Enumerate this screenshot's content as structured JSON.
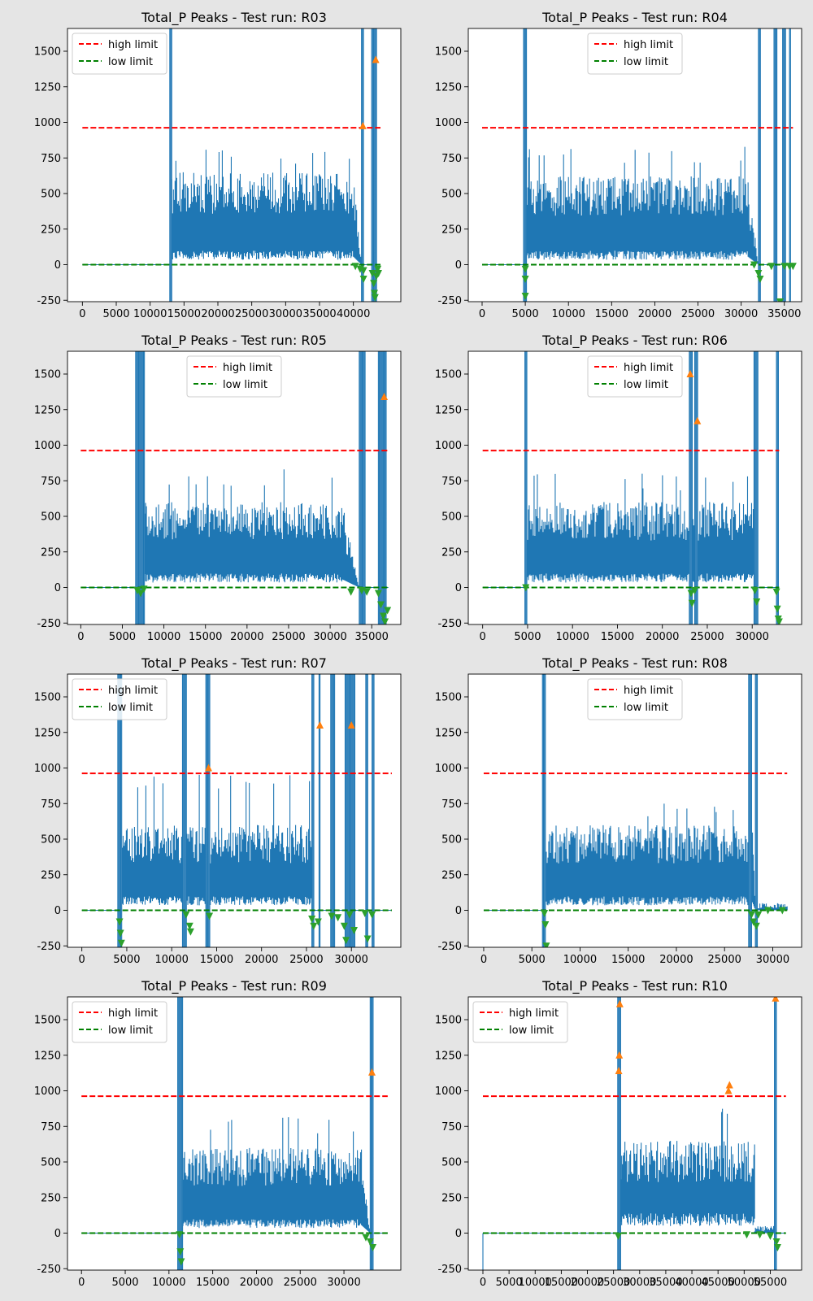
{
  "figure": {
    "background": "#e5e5e5"
  },
  "legend_labels": {
    "high": "high limit",
    "low": "low limit"
  },
  "colors": {
    "signal": "#1f77b4",
    "high_limit": "#ff0000",
    "low_limit": "#008000",
    "peak_up": "#ff7f0e",
    "peak_down": "#2ca02c"
  },
  "chart_data": [
    {
      "type": "line",
      "title": "Total_P Peaks - Test run: R03",
      "legend_pos": "upper-left",
      "xlim": [
        -2200,
        47000
      ],
      "ylim": [
        -260,
        1660
      ],
      "xticks": [
        0,
        5000,
        10000,
        15000,
        20000,
        25000,
        30000,
        35000,
        40000
      ],
      "xtick_labels": [
        "0",
        "5000",
        "10000",
        "15000",
        "20000",
        "25000",
        "30000",
        "35000",
        "40000"
      ],
      "yticks": [
        -250,
        0,
        250,
        500,
        750,
        1000,
        1250,
        1500
      ],
      "ytick_labels": [
        "-250",
        "0",
        "250",
        "500",
        "750",
        "1000",
        "1250",
        "1500"
      ],
      "high_limit": 962,
      "low_limit": 0,
      "x_end": 44000,
      "segments": [
        [
          0,
          12900,
          "flat"
        ],
        [
          12900,
          13200,
          "spike"
        ],
        [
          13200,
          40000,
          "band"
        ],
        [
          40000,
          41200,
          "decay"
        ],
        [
          41200,
          41500,
          "spike"
        ],
        [
          41500,
          42700,
          "flat"
        ],
        [
          42700,
          43500,
          "spike"
        ],
        [
          43500,
          44000,
          "flat"
        ]
      ],
      "band": {
        "low": 70,
        "high": 650,
        "peak": 820
      },
      "peaks_up": [
        [
          41400,
          975
        ],
        [
          43300,
          1440
        ]
      ],
      "peaks_down": [
        [
          40300,
          -10
        ],
        [
          41000,
          -30
        ],
        [
          41500,
          -40
        ],
        [
          41500,
          -100
        ],
        [
          42800,
          -60
        ],
        [
          43000,
          -130
        ],
        [
          43100,
          -200
        ],
        [
          43200,
          -230
        ],
        [
          43400,
          -80
        ],
        [
          43600,
          -30
        ],
        [
          43700,
          -60
        ]
      ]
    },
    {
      "type": "line",
      "title": "Total_P Peaks - Test run: R04",
      "legend_pos": "upper-center",
      "xlim": [
        -1600,
        37000
      ],
      "ylim": [
        -260,
        1660
      ],
      "xticks": [
        0,
        5000,
        10000,
        15000,
        20000,
        25000,
        30000,
        35000
      ],
      "xtick_labels": [
        "0",
        "5000",
        "10000",
        "15000",
        "20000",
        "25000",
        "30000",
        "35000"
      ],
      "yticks": [
        -250,
        0,
        250,
        500,
        750,
        1000,
        1250,
        1500
      ],
      "ytick_labels": [
        "-250",
        "0",
        "250",
        "500",
        "750",
        "1000",
        "1250",
        "1500"
      ],
      "high_limit": 962,
      "low_limit": 0,
      "x_end": 36000,
      "segments": [
        [
          0,
          4800,
          "flat"
        ],
        [
          4800,
          5200,
          "spike"
        ],
        [
          5200,
          30800,
          "band"
        ],
        [
          30800,
          32000,
          "decay"
        ],
        [
          32000,
          32300,
          "spike"
        ],
        [
          32300,
          33800,
          "flat"
        ],
        [
          33800,
          34200,
          "spike"
        ],
        [
          34200,
          34800,
          "flat"
        ],
        [
          34800,
          35200,
          "spike"
        ],
        [
          35200,
          35600,
          "flat"
        ],
        [
          35600,
          35800,
          "spike"
        ],
        [
          35800,
          36000,
          "flat"
        ]
      ],
      "band": {
        "low": 70,
        "high": 620,
        "peak": 840
      },
      "peaks_up": [],
      "peaks_down": [
        [
          5000,
          -30
        ],
        [
          5000,
          -100
        ],
        [
          5000,
          -220
        ],
        [
          31500,
          0
        ],
        [
          32000,
          -60
        ],
        [
          32200,
          -100
        ],
        [
          33500,
          -10
        ],
        [
          34500,
          -260
        ],
        [
          35000,
          -10
        ],
        [
          35600,
          -10
        ],
        [
          36000,
          -10
        ]
      ]
    },
    {
      "type": "line",
      "title": "Total_P Peaks - Test run: R05",
      "legend_pos": "upper-center",
      "xlim": [
        -1600,
        38500
      ],
      "ylim": [
        -260,
        1660
      ],
      "xticks": [
        0,
        5000,
        10000,
        15000,
        20000,
        25000,
        30000,
        35000
      ],
      "xtick_labels": [
        "0",
        "5000",
        "10000",
        "15000",
        "20000",
        "25000",
        "30000",
        "35000"
      ],
      "yticks": [
        -250,
        0,
        250,
        500,
        750,
        1000,
        1250,
        1500
      ],
      "ytick_labels": [
        "-250",
        "0",
        "250",
        "500",
        "750",
        "1000",
        "1250",
        "1500"
      ],
      "high_limit": 962,
      "low_limit": 0,
      "x_end": 37000,
      "segments": [
        [
          0,
          6600,
          "flat"
        ],
        [
          6600,
          7700,
          "spike"
        ],
        [
          7700,
          31500,
          "band"
        ],
        [
          31500,
          33500,
          "decay"
        ],
        [
          33500,
          34300,
          "spike"
        ],
        [
          34300,
          35800,
          "flat"
        ],
        [
          35800,
          36800,
          "spike"
        ],
        [
          36800,
          37000,
          "flat"
        ]
      ],
      "band": {
        "low": 70,
        "high": 600,
        "peak": 840
      },
      "peaks_up": [
        [
          36500,
          1340
        ]
      ],
      "peaks_down": [
        [
          6800,
          -20
        ],
        [
          7200,
          -40
        ],
        [
          7600,
          -10
        ],
        [
          32500,
          -30
        ],
        [
          33800,
          -20
        ],
        [
          34400,
          -30
        ],
        [
          35800,
          -40
        ],
        [
          36100,
          -120
        ],
        [
          36400,
          -200
        ],
        [
          36600,
          -240
        ],
        [
          36900,
          -160
        ]
      ]
    },
    {
      "type": "line",
      "title": "Total_P Peaks - Test run: R06",
      "legend_pos": "upper-center",
      "xlim": [
        -1600,
        35500
      ],
      "ylim": [
        -260,
        1660
      ],
      "xticks": [
        0,
        5000,
        10000,
        15000,
        20000,
        25000,
        30000
      ],
      "xtick_labels": [
        "0",
        "5000",
        "10000",
        "15000",
        "20000",
        "25000",
        "30000"
      ],
      "yticks": [
        -250,
        0,
        250,
        500,
        750,
        1000,
        1250,
        1500
      ],
      "ytick_labels": [
        "-250",
        "0",
        "250",
        "500",
        "750",
        "1000",
        "1250",
        "1500"
      ],
      "high_limit": 962,
      "low_limit": 0,
      "x_end": 33000,
      "segments": [
        [
          0,
          4700,
          "flat"
        ],
        [
          4700,
          5000,
          "spike"
        ],
        [
          5000,
          23000,
          "band"
        ],
        [
          23000,
          23400,
          "spike"
        ],
        [
          23400,
          23600,
          "band"
        ],
        [
          23600,
          24000,
          "spike"
        ],
        [
          24000,
          30200,
          "band"
        ],
        [
          30200,
          30700,
          "spike"
        ],
        [
          30700,
          32700,
          "flat"
        ],
        [
          32700,
          33000,
          "spike"
        ]
      ],
      "band": {
        "low": 70,
        "high": 600,
        "peak": 800
      },
      "peaks_up": [
        [
          23100,
          1500
        ],
        [
          23900,
          1170
        ]
      ],
      "peaks_down": [
        [
          4800,
          0
        ],
        [
          23200,
          -40
        ],
        [
          23300,
          -110
        ],
        [
          23600,
          -20
        ],
        [
          30300,
          -20
        ],
        [
          30500,
          -100
        ],
        [
          32700,
          -30
        ],
        [
          32800,
          -150
        ],
        [
          32900,
          -220
        ],
        [
          33000,
          -240
        ]
      ]
    },
    {
      "type": "line",
      "title": "Total_P Peaks - Test run: R07",
      "legend_pos": "upper-left",
      "xlim": [
        -1600,
        35500
      ],
      "ylim": [
        -260,
        1660
      ],
      "xticks": [
        0,
        5000,
        10000,
        15000,
        20000,
        25000,
        30000
      ],
      "xtick_labels": [
        "0",
        "5000",
        "10000",
        "15000",
        "20000",
        "25000",
        "30000"
      ],
      "yticks": [
        -250,
        0,
        250,
        500,
        750,
        1000,
        1250,
        1500
      ],
      "ytick_labels": [
        "-250",
        "0",
        "250",
        "500",
        "750",
        "1000",
        "1250",
        "1500"
      ],
      "high_limit": 962,
      "low_limit": 0,
      "x_end": 34500,
      "segments": [
        [
          0,
          4000,
          "flat"
        ],
        [
          4000,
          4500,
          "spike"
        ],
        [
          4500,
          11200,
          "band"
        ],
        [
          11200,
          11700,
          "spike"
        ],
        [
          11700,
          13800,
          "band"
        ],
        [
          13800,
          14300,
          "spike"
        ],
        [
          14300,
          25600,
          "band"
        ],
        [
          25600,
          25900,
          "spike"
        ],
        [
          25900,
          26400,
          "flat"
        ],
        [
          26400,
          26600,
          "spike"
        ],
        [
          26600,
          27700,
          "flat"
        ],
        [
          27700,
          28200,
          "spike"
        ],
        [
          28200,
          29300,
          "flat"
        ],
        [
          29300,
          30400,
          "spike"
        ],
        [
          30400,
          31600,
          "flat"
        ],
        [
          31600,
          31900,
          "spike"
        ],
        [
          31900,
          32300,
          "flat"
        ],
        [
          32300,
          32600,
          "spike"
        ],
        [
          32600,
          34500,
          "flat"
        ]
      ],
      "band": {
        "low": 70,
        "high": 600,
        "peak": 970
      },
      "peaks_up": [
        [
          14100,
          1000
        ],
        [
          26500,
          1300
        ],
        [
          30000,
          1300
        ]
      ],
      "peaks_down": [
        [
          4200,
          -80
        ],
        [
          4300,
          -160
        ],
        [
          4400,
          -230
        ],
        [
          11600,
          -30
        ],
        [
          12000,
          -110
        ],
        [
          12100,
          -150
        ],
        [
          14200,
          -40
        ],
        [
          25600,
          -60
        ],
        [
          25800,
          -110
        ],
        [
          26300,
          -80
        ],
        [
          27800,
          -40
        ],
        [
          28500,
          -50
        ],
        [
          29200,
          -110
        ],
        [
          29400,
          -210
        ],
        [
          29800,
          -30
        ],
        [
          30300,
          -140
        ],
        [
          31500,
          -20
        ],
        [
          31800,
          -200
        ],
        [
          32300,
          -30
        ]
      ]
    },
    {
      "type": "line",
      "title": "Total_P Peaks - Test run: R08",
      "legend_pos": "upper-center",
      "xlim": [
        -1600,
        33000
      ],
      "ylim": [
        -260,
        1660
      ],
      "xticks": [
        0,
        5000,
        10000,
        15000,
        20000,
        25000,
        30000
      ],
      "xtick_labels": [
        "0",
        "5000",
        "10000",
        "15000",
        "20000",
        "25000",
        "30000"
      ],
      "yticks": [
        -250,
        0,
        250,
        500,
        750,
        1000,
        1250,
        1500
      ],
      "ytick_labels": [
        "-250",
        "0",
        "250",
        "500",
        "750",
        "1000",
        "1250",
        "1500"
      ],
      "high_limit": 962,
      "low_limit": 0,
      "x_end": 31500,
      "segments": [
        [
          0,
          6100,
          "flat"
        ],
        [
          6100,
          6500,
          "spike"
        ],
        [
          6500,
          27500,
          "band"
        ],
        [
          27500,
          27900,
          "spike"
        ],
        [
          27900,
          28200,
          "decay"
        ],
        [
          28200,
          28500,
          "spike"
        ],
        [
          28500,
          31500,
          "tail"
        ]
      ],
      "band": {
        "low": 70,
        "high": 600,
        "peak": 760
      },
      "peaks_up": [],
      "peaks_down": [
        [
          6300,
          -20
        ],
        [
          6400,
          -100
        ],
        [
          6500,
          -250
        ],
        [
          27800,
          -30
        ],
        [
          28000,
          -80
        ],
        [
          28300,
          -110
        ],
        [
          28500,
          -30
        ],
        [
          29500,
          0
        ],
        [
          31000,
          0
        ]
      ]
    },
    {
      "type": "line",
      "title": "Total_P Peaks - Test run: R09",
      "legend_pos": "upper-left",
      "xlim": [
        -1600,
        36500
      ],
      "ylim": [
        -260,
        1660
      ],
      "xticks": [
        0,
        5000,
        10000,
        15000,
        20000,
        25000,
        30000
      ],
      "xtick_labels": [
        "0",
        "5000",
        "10000",
        "15000",
        "20000",
        "25000",
        "30000"
      ],
      "yticks": [
        -250,
        0,
        250,
        500,
        750,
        1000,
        1250,
        1500
      ],
      "ytick_labels": [
        "-250",
        "0",
        "250",
        "500",
        "750",
        "1000",
        "1250",
        "1500"
      ],
      "high_limit": 962,
      "low_limit": 0,
      "x_end": 35000,
      "segments": [
        [
          0,
          11000,
          "flat"
        ],
        [
          11000,
          11600,
          "spike"
        ],
        [
          11600,
          32000,
          "band"
        ],
        [
          32000,
          33000,
          "decay"
        ],
        [
          33000,
          33400,
          "spike"
        ],
        [
          33400,
          35000,
          "flat"
        ]
      ],
      "band": {
        "low": 70,
        "high": 600,
        "peak": 820
      },
      "peaks_up": [
        [
          33200,
          1130
        ]
      ],
      "peaks_down": [
        [
          11200,
          -10
        ],
        [
          11300,
          -130
        ],
        [
          11400,
          -200
        ],
        [
          32500,
          -30
        ],
        [
          33000,
          -60
        ],
        [
          33300,
          -100
        ]
      ]
    },
    {
      "type": "line",
      "title": "Total_P Peaks - Test run: R10",
      "legend_pos": "upper-left",
      "xlim": [
        -2800,
        61000
      ],
      "ylim": [
        -260,
        1660
      ],
      "xticks": [
        0,
        5000,
        10000,
        15000,
        20000,
        25000,
        30000,
        35000,
        40000,
        45000,
        50000,
        55000
      ],
      "xtick_labels": [
        "0",
        "5000",
        "10000",
        "15000",
        "20000",
        "25000",
        "30000",
        "35000",
        "40000",
        "45000",
        "50000",
        "55000"
      ],
      "yticks": [
        -250,
        0,
        250,
        500,
        750,
        1000,
        1250,
        1500
      ],
      "ytick_labels": [
        "-250",
        "0",
        "250",
        "500",
        "750",
        "1000",
        "1250",
        "1500"
      ],
      "high_limit": 962,
      "low_limit": 0,
      "x_end": 58000,
      "segments": [
        [
          0,
          200,
          "drop"
        ],
        [
          200,
          25800,
          "flat"
        ],
        [
          25800,
          26400,
          "spike"
        ],
        [
          26400,
          46000,
          "band"
        ],
        [
          46000,
          52000,
          "band2"
        ],
        [
          52000,
          55800,
          "tail"
        ],
        [
          55800,
          56200,
          "spike"
        ],
        [
          56200,
          58000,
          "flat"
        ]
      ],
      "band": {
        "low": 100,
        "high": 650,
        "peak": 920
      },
      "peaks_up": [
        [
          26000,
          1140
        ],
        [
          26100,
          1250
        ],
        [
          26200,
          1610
        ],
        [
          47000,
          1000
        ],
        [
          47200,
          1040
        ],
        [
          56000,
          1650
        ]
      ],
      "peaks_down": [
        [
          25900,
          -20
        ],
        [
          50500,
          -10
        ],
        [
          53000,
          -10
        ],
        [
          55000,
          -20
        ],
        [
          56200,
          -60
        ],
        [
          56400,
          -100
        ]
      ]
    }
  ]
}
